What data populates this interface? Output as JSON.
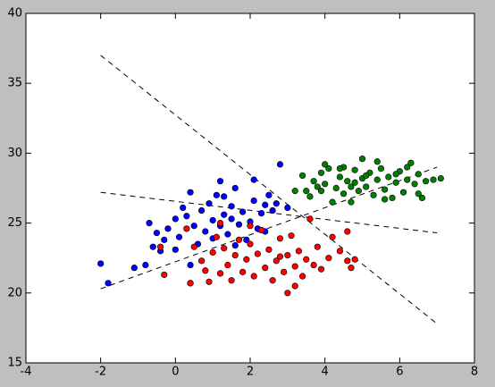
{
  "chart_data": {
    "type": "scatter",
    "xlim": [
      -4,
      8
    ],
    "xticks": [
      -4,
      -2,
      0,
      2,
      4,
      6,
      8
    ],
    "ylim": [
      15,
      40
    ],
    "yticks": [
      15,
      20,
      25,
      30,
      35,
      40
    ],
    "series": [
      {
        "color": "#0000ff",
        "x": [
          -2,
          -1.8,
          -1.1,
          -0.8,
          -0.6,
          -0.7,
          -0.5,
          -0.3,
          -0.2,
          0,
          0.1,
          0.2,
          0.3,
          0.4,
          0.4,
          0.5,
          0.6,
          0.7,
          0.8,
          0.9,
          1.0,
          1.0,
          1.1,
          1.2,
          1.3,
          1.3,
          1.4,
          1.5,
          1.5,
          1.6,
          1.7,
          1.8,
          1.9,
          2.0,
          2.1,
          2.2,
          2.3,
          2.4,
          2.5,
          2.6,
          2.7,
          2.8,
          2.1,
          1.2,
          0.4,
          -0.4,
          0.0,
          1.6,
          2.4,
          3.0
        ],
        "values": [
          22.1,
          20.7,
          21.8,
          22.0,
          23.3,
          25.0,
          24.3,
          23.8,
          24.6,
          25.3,
          24.0,
          26.1,
          25.5,
          27.2,
          22.0,
          24.8,
          23.5,
          25.9,
          24.4,
          26.4,
          25.2,
          23.9,
          27.0,
          24.8,
          25.6,
          26.9,
          24.2,
          25.3,
          26.2,
          27.5,
          24.9,
          25.8,
          23.8,
          25.1,
          26.6,
          24.6,
          25.7,
          26.3,
          27.0,
          25.9,
          26.4,
          29.2,
          28.1,
          28.0,
          20.7,
          23.0,
          23.1,
          23.4,
          24.4,
          26.1
        ]
      },
      {
        "color": "#008000",
        "x": [
          3.2,
          3.5,
          3.6,
          3.7,
          3.8,
          3.9,
          4.0,
          4.1,
          4.2,
          4.3,
          4.4,
          4.5,
          4.5,
          4.6,
          4.7,
          4.8,
          4.9,
          5.0,
          5.0,
          5.1,
          5.2,
          5.3,
          5.4,
          5.5,
          5.6,
          5.7,
          5.8,
          5.9,
          6.0,
          6.1,
          6.2,
          6.3,
          6.4,
          6.5,
          6.6,
          6.7,
          6.9,
          7.1,
          3.4,
          4.0,
          5.4,
          6.2,
          4.7,
          5.6,
          3.9,
          6.5,
          4.4,
          5.1,
          4.8,
          5.9
        ],
        "values": [
          27.3,
          27.3,
          26.9,
          28.0,
          27.6,
          28.6,
          27.8,
          28.9,
          26.5,
          27.5,
          28.3,
          27.1,
          29.0,
          28.0,
          27.6,
          28.8,
          27.3,
          28.2,
          29.6,
          27.6,
          28.6,
          27.0,
          28.1,
          28.9,
          27.4,
          28.3,
          26.8,
          27.9,
          28.7,
          27.2,
          28.1,
          29.3,
          27.8,
          28.5,
          26.8,
          28.0,
          28.1,
          28.2,
          28.4,
          29.2,
          29.4,
          29.0,
          26.5,
          26.7,
          27.3,
          27.1,
          28.9,
          28.4,
          27.9,
          28.5
        ]
      },
      {
        "color": "#ff0000",
        "x": [
          -0.4,
          -0.3,
          0.3,
          0.4,
          0.5,
          0.7,
          0.8,
          0.9,
          1.0,
          1.1,
          1.2,
          1.3,
          1.4,
          1.5,
          1.6,
          1.7,
          1.8,
          1.9,
          2.0,
          2.1,
          2.2,
          2.3,
          2.4,
          2.5,
          2.6,
          2.7,
          2.8,
          2.9,
          3.0,
          3.0,
          3.1,
          3.2,
          3.3,
          3.4,
          3.5,
          3.6,
          3.7,
          3.8,
          3.9,
          4.1,
          4.2,
          4.4,
          4.6,
          4.8,
          4.7,
          4.6,
          3.2,
          2.0,
          1.2,
          2.8
        ],
        "values": [
          23.3,
          21.3,
          24.6,
          20.7,
          23.3,
          22.3,
          21.6,
          20.8,
          22.9,
          24.0,
          21.4,
          23.2,
          22.0,
          20.9,
          22.7,
          23.8,
          21.5,
          22.4,
          23.5,
          21.2,
          22.8,
          24.5,
          21.8,
          23.1,
          20.9,
          22.3,
          23.9,
          21.5,
          22.7,
          20.0,
          24.1,
          21.9,
          23.0,
          21.2,
          22.4,
          25.3,
          22.0,
          23.3,
          21.7,
          22.5,
          24.0,
          23.0,
          22.3,
          22.4,
          21.8,
          24.4,
          20.5,
          24.8,
          25.0,
          22.6
        ]
      }
    ],
    "lines": [
      {
        "x": [
          -2,
          7
        ],
        "values": [
          37,
          17.8
        ]
      },
      {
        "x": [
          -2,
          7
        ],
        "values": [
          27.2,
          24.3
        ]
      },
      {
        "x": [
          -2,
          7
        ],
        "values": [
          20.3,
          29
        ]
      }
    ]
  }
}
